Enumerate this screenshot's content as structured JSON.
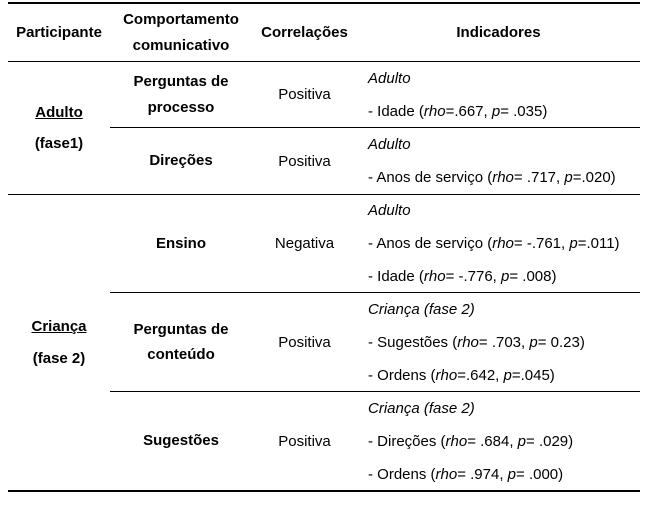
{
  "page": {
    "background_color": "#ffffff",
    "text_color": "#000000",
    "line_color": "#000000"
  },
  "table": {
    "headers": {
      "participante": "Participante",
      "comportamento": "Comportamento comunicativo",
      "correlacoes": "Correlações",
      "indicadores": "Indicadores"
    },
    "participants": [
      {
        "name": "Adulto",
        "phase": "(fase1)"
      },
      {
        "name": "Criança",
        "phase": "(fase 2)"
      }
    ],
    "rows": [
      {
        "comportamento": "Perguntas de processo",
        "correlacao": "Positiva",
        "indicador_titulo": "Adulto",
        "indicadores": [
          "- Idade (*rho*=.667, *p*= .035)"
        ]
      },
      {
        "comportamento": "Direções",
        "correlacao": "Positiva",
        "indicador_titulo": "Adulto",
        "indicadores": [
          "- Anos de serviço (*rho*= .717, *p*=.020)"
        ]
      },
      {
        "comportamento": "Ensino",
        "correlacao": "Negativa",
        "indicador_titulo": "Adulto",
        "indicadores": [
          "- Anos de serviço (*rho*= -.761, *p*=.011)",
          "- Idade (*rho*= -.776, *p*= .008)"
        ]
      },
      {
        "comportamento": "Perguntas de conteúdo",
        "correlacao": "Positiva",
        "indicador_titulo": "Criança (fase 2)",
        "indicadores": [
          "- Sugestões (*rho*= .703, *p*= 0.23)",
          "- Ordens (*rho*=.642, *p*=.045)"
        ]
      },
      {
        "comportamento": "Sugestões",
        "correlacao": "Positiva",
        "indicador_titulo": "Criança (fase 2)",
        "indicadores": [
          "- Direções (*rho*= .684, *p*= .029)",
          "- Ordens (*rho*= .974, *p*= .000)"
        ]
      }
    ]
  }
}
